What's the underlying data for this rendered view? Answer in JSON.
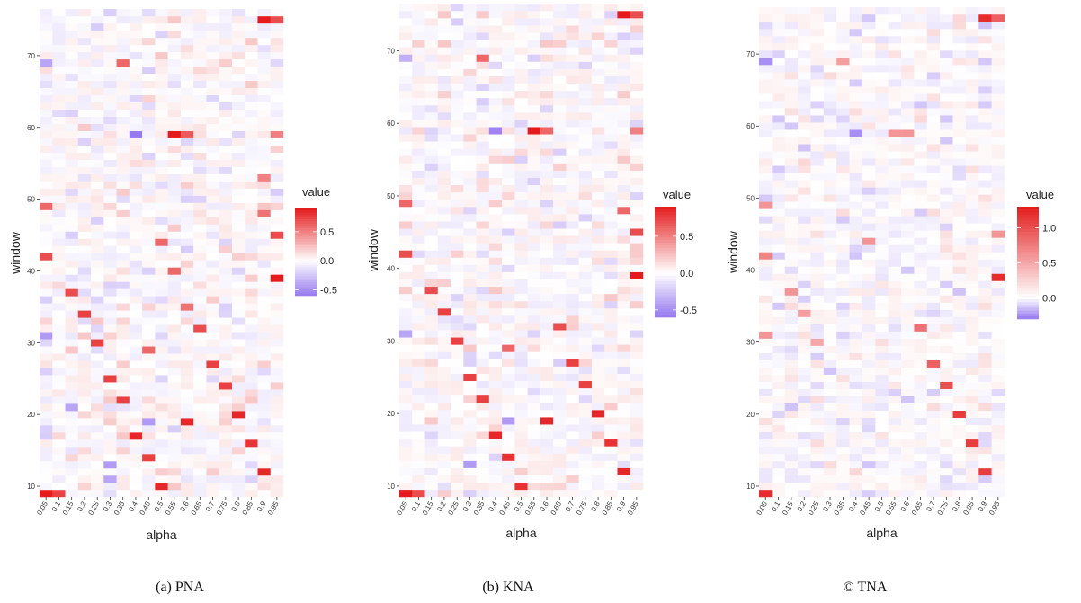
{
  "chart_data": [
    {
      "type": "heatmap",
      "caption": "(a) PNA",
      "xlabel": "alpha",
      "ylabel": "window",
      "x_categories": [
        "0.05",
        "0.1",
        "0.15",
        "0.2",
        "0.25",
        "0.3",
        "0.35",
        "0.4",
        "0.45",
        "0.5",
        "0.55",
        "0.6",
        "0.65",
        "0.7",
        "0.75",
        "0.8",
        "0.85",
        "0.9",
        "0.95"
      ],
      "y_range": [
        9,
        76
      ],
      "y_ticks": [
        10,
        20,
        30,
        40,
        50,
        60,
        70
      ],
      "legend": {
        "title": "value",
        "placement": "right",
        "ticks": [
          "0.5",
          "0.0",
          "-0.5"
        ],
        "scale": [
          -0.6,
          0.9
        ]
      },
      "highlights": [
        {
          "alpha": "0.05",
          "window": 9,
          "value": 0.9
        },
        {
          "alpha": "0.1",
          "window": 9,
          "value": 0.75
        },
        {
          "alpha": "0.05",
          "window": 42,
          "value": 0.7
        },
        {
          "alpha": "0.05",
          "window": 49,
          "value": 0.6
        },
        {
          "alpha": "0.05",
          "window": 31,
          "value": -0.45
        },
        {
          "alpha": "0.15",
          "window": 37,
          "value": 0.7
        },
        {
          "alpha": "0.2",
          "window": 34,
          "value": 0.75
        },
        {
          "alpha": "0.25",
          "window": 30,
          "value": 0.75
        },
        {
          "alpha": "0.15",
          "window": 21,
          "value": -0.4
        },
        {
          "alpha": "0.3",
          "window": 25,
          "value": 0.75
        },
        {
          "alpha": "0.35",
          "window": 22,
          "value": 0.75
        },
        {
          "alpha": "0.3",
          "window": 13,
          "value": -0.45
        },
        {
          "alpha": "0.3",
          "window": 11,
          "value": -0.4
        },
        {
          "alpha": "0.35",
          "window": 69,
          "value": 0.6
        },
        {
          "alpha": "0.4",
          "window": 59,
          "value": -0.6
        },
        {
          "alpha": "0.4",
          "window": 17,
          "value": 0.85
        },
        {
          "alpha": "0.45",
          "window": 29,
          "value": 0.6
        },
        {
          "alpha": "0.45",
          "window": 19,
          "value": -0.45
        },
        {
          "alpha": "0.45",
          "window": 14,
          "value": 0.75
        },
        {
          "alpha": "0.5",
          "window": 10,
          "value": 0.85
        },
        {
          "alpha": "0.5",
          "window": 44,
          "value": 0.6
        },
        {
          "alpha": "0.55",
          "window": 59,
          "value": 0.9
        },
        {
          "alpha": "0.6",
          "window": 59,
          "value": 0.65
        },
        {
          "alpha": "0.55",
          "window": 40,
          "value": 0.6
        },
        {
          "alpha": "0.6",
          "window": 19,
          "value": 0.85
        },
        {
          "alpha": "0.6",
          "window": 35,
          "value": 0.55
        },
        {
          "alpha": "0.65",
          "window": 32,
          "value": 0.7
        },
        {
          "alpha": "0.7",
          "window": 27,
          "value": 0.75
        },
        {
          "alpha": "0.75",
          "window": 24,
          "value": 0.75
        },
        {
          "alpha": "0.8",
          "window": 20,
          "value": 0.85
        },
        {
          "alpha": "0.85",
          "window": 16,
          "value": 0.8
        },
        {
          "alpha": "0.9",
          "window": 12,
          "value": 0.85
        },
        {
          "alpha": "0.9",
          "window": 75,
          "value": 0.9
        },
        {
          "alpha": "0.95",
          "window": 75,
          "value": 0.7
        },
        {
          "alpha": "0.95",
          "window": 39,
          "value": 0.9
        },
        {
          "alpha": "0.95",
          "window": 45,
          "value": 0.7
        },
        {
          "alpha": "0.9",
          "window": 48,
          "value": 0.55
        },
        {
          "alpha": "0.9",
          "window": 53,
          "value": 0.5
        },
        {
          "alpha": "0.95",
          "window": 59,
          "value": 0.5
        },
        {
          "alpha": "0.05",
          "window": 69,
          "value": -0.4
        }
      ]
    },
    {
      "type": "heatmap",
      "caption": "(b) KNA",
      "xlabel": "alpha",
      "ylabel": "window",
      "x_categories": [
        "0.05",
        "0.1",
        "0.15",
        "0.2",
        "0.25",
        "0.3",
        "0.35",
        "0.4",
        "0.45",
        "0.5",
        "0.55",
        "0.6",
        "0.65",
        "0.7",
        "0.75",
        "0.8",
        "0.85",
        "0.9",
        "0.95"
      ],
      "y_range": [
        9,
        76
      ],
      "y_ticks": [
        10,
        20,
        30,
        40,
        50,
        60,
        70
      ],
      "legend": {
        "title": "value",
        "placement": "right",
        "ticks": [
          "0.5",
          "0.0",
          "-0.5"
        ],
        "scale": [
          -0.6,
          0.9
        ]
      },
      "highlights": [
        {
          "alpha": "0.05",
          "window": 9,
          "value": 0.9
        },
        {
          "alpha": "0.1",
          "window": 9,
          "value": 0.7
        },
        {
          "alpha": "0.05",
          "window": 42,
          "value": 0.7
        },
        {
          "alpha": "0.05",
          "window": 49,
          "value": 0.6
        },
        {
          "alpha": "0.05",
          "window": 31,
          "value": -0.4
        },
        {
          "alpha": "0.15",
          "window": 37,
          "value": 0.7
        },
        {
          "alpha": "0.2",
          "window": 34,
          "value": 0.75
        },
        {
          "alpha": "0.25",
          "window": 30,
          "value": 0.75
        },
        {
          "alpha": "0.3",
          "window": 25,
          "value": 0.75
        },
        {
          "alpha": "0.35",
          "window": 22,
          "value": 0.75
        },
        {
          "alpha": "0.3",
          "window": 13,
          "value": -0.45
        },
        {
          "alpha": "0.35",
          "window": 69,
          "value": 0.6
        },
        {
          "alpha": "0.4",
          "window": 59,
          "value": -0.55
        },
        {
          "alpha": "0.4",
          "window": 17,
          "value": 0.85
        },
        {
          "alpha": "0.45",
          "window": 29,
          "value": 0.6
        },
        {
          "alpha": "0.45",
          "window": 19,
          "value": -0.45
        },
        {
          "alpha": "0.45",
          "window": 14,
          "value": 0.8
        },
        {
          "alpha": "0.5",
          "window": 10,
          "value": 0.8
        },
        {
          "alpha": "0.55",
          "window": 59,
          "value": 0.9
        },
        {
          "alpha": "0.6",
          "window": 59,
          "value": 0.6
        },
        {
          "alpha": "0.6",
          "window": 19,
          "value": 0.85
        },
        {
          "alpha": "0.65",
          "window": 32,
          "value": 0.7
        },
        {
          "alpha": "0.7",
          "window": 27,
          "value": 0.75
        },
        {
          "alpha": "0.75",
          "window": 24,
          "value": 0.75
        },
        {
          "alpha": "0.8",
          "window": 20,
          "value": 0.85
        },
        {
          "alpha": "0.85",
          "window": 16,
          "value": 0.8
        },
        {
          "alpha": "0.9",
          "window": 12,
          "value": 0.85
        },
        {
          "alpha": "0.9",
          "window": 75,
          "value": 0.9
        },
        {
          "alpha": "0.95",
          "window": 75,
          "value": 0.7
        },
        {
          "alpha": "0.95",
          "window": 39,
          "value": 0.9
        },
        {
          "alpha": "0.95",
          "window": 45,
          "value": 0.7
        },
        {
          "alpha": "0.9",
          "window": 48,
          "value": 0.6
        },
        {
          "alpha": "0.95",
          "window": 59,
          "value": 0.5
        },
        {
          "alpha": "0.05",
          "window": 69,
          "value": -0.35
        }
      ]
    },
    {
      "type": "heatmap",
      "caption": "© TNA",
      "xlabel": "alpha",
      "ylabel": "window",
      "x_categories": [
        "0.05",
        "0.1",
        "0.15",
        "0.2",
        "0.25",
        "0.3",
        "0.35",
        "0.4",
        "0.45",
        "0.5",
        "0.55",
        "0.6",
        "0.65",
        "0.7",
        "0.75",
        "0.8",
        "0.85",
        "0.9",
        "0.95"
      ],
      "y_range": [
        9,
        76
      ],
      "y_ticks": [
        10,
        20,
        30,
        40,
        50,
        60,
        70
      ],
      "legend": {
        "title": "value",
        "placement": "right",
        "ticks": [
          "1.0",
          "0.5",
          "0.0"
        ],
        "scale": [
          -0.3,
          1.3
        ]
      },
      "highlights": [
        {
          "alpha": "0.05",
          "window": 9,
          "value": 1.2
        },
        {
          "alpha": "0.05",
          "window": 42,
          "value": 0.7
        },
        {
          "alpha": "0.05",
          "window": 49,
          "value": 0.6
        },
        {
          "alpha": "0.15",
          "window": 37,
          "value": 0.6
        },
        {
          "alpha": "0.2",
          "window": 34,
          "value": 0.55
        },
        {
          "alpha": "0.25",
          "window": 30,
          "value": 0.5
        },
        {
          "alpha": "0.35",
          "window": 69,
          "value": 0.55
        },
        {
          "alpha": "0.45",
          "window": 44,
          "value": 0.6
        },
        {
          "alpha": "0.55",
          "window": 59,
          "value": 0.6
        },
        {
          "alpha": "0.6",
          "window": 59,
          "value": 0.6
        },
        {
          "alpha": "0.65",
          "window": 32,
          "value": 0.8
        },
        {
          "alpha": "0.7",
          "window": 27,
          "value": 0.9
        },
        {
          "alpha": "0.75",
          "window": 24,
          "value": 1.0
        },
        {
          "alpha": "0.8",
          "window": 20,
          "value": 1.1
        },
        {
          "alpha": "0.85",
          "window": 16,
          "value": 1.1
        },
        {
          "alpha": "0.9",
          "window": 12,
          "value": 1.1
        },
        {
          "alpha": "0.9",
          "window": 75,
          "value": 1.2
        },
        {
          "alpha": "0.95",
          "window": 75,
          "value": 0.9
        },
        {
          "alpha": "0.95",
          "window": 39,
          "value": 1.2
        },
        {
          "alpha": "0.95",
          "window": 45,
          "value": 0.6
        },
        {
          "alpha": "0.05",
          "window": 31,
          "value": 0.6
        },
        {
          "alpha": "0.4",
          "window": 59,
          "value": -0.25
        },
        {
          "alpha": "0.05",
          "window": 69,
          "value": -0.25
        }
      ]
    }
  ]
}
